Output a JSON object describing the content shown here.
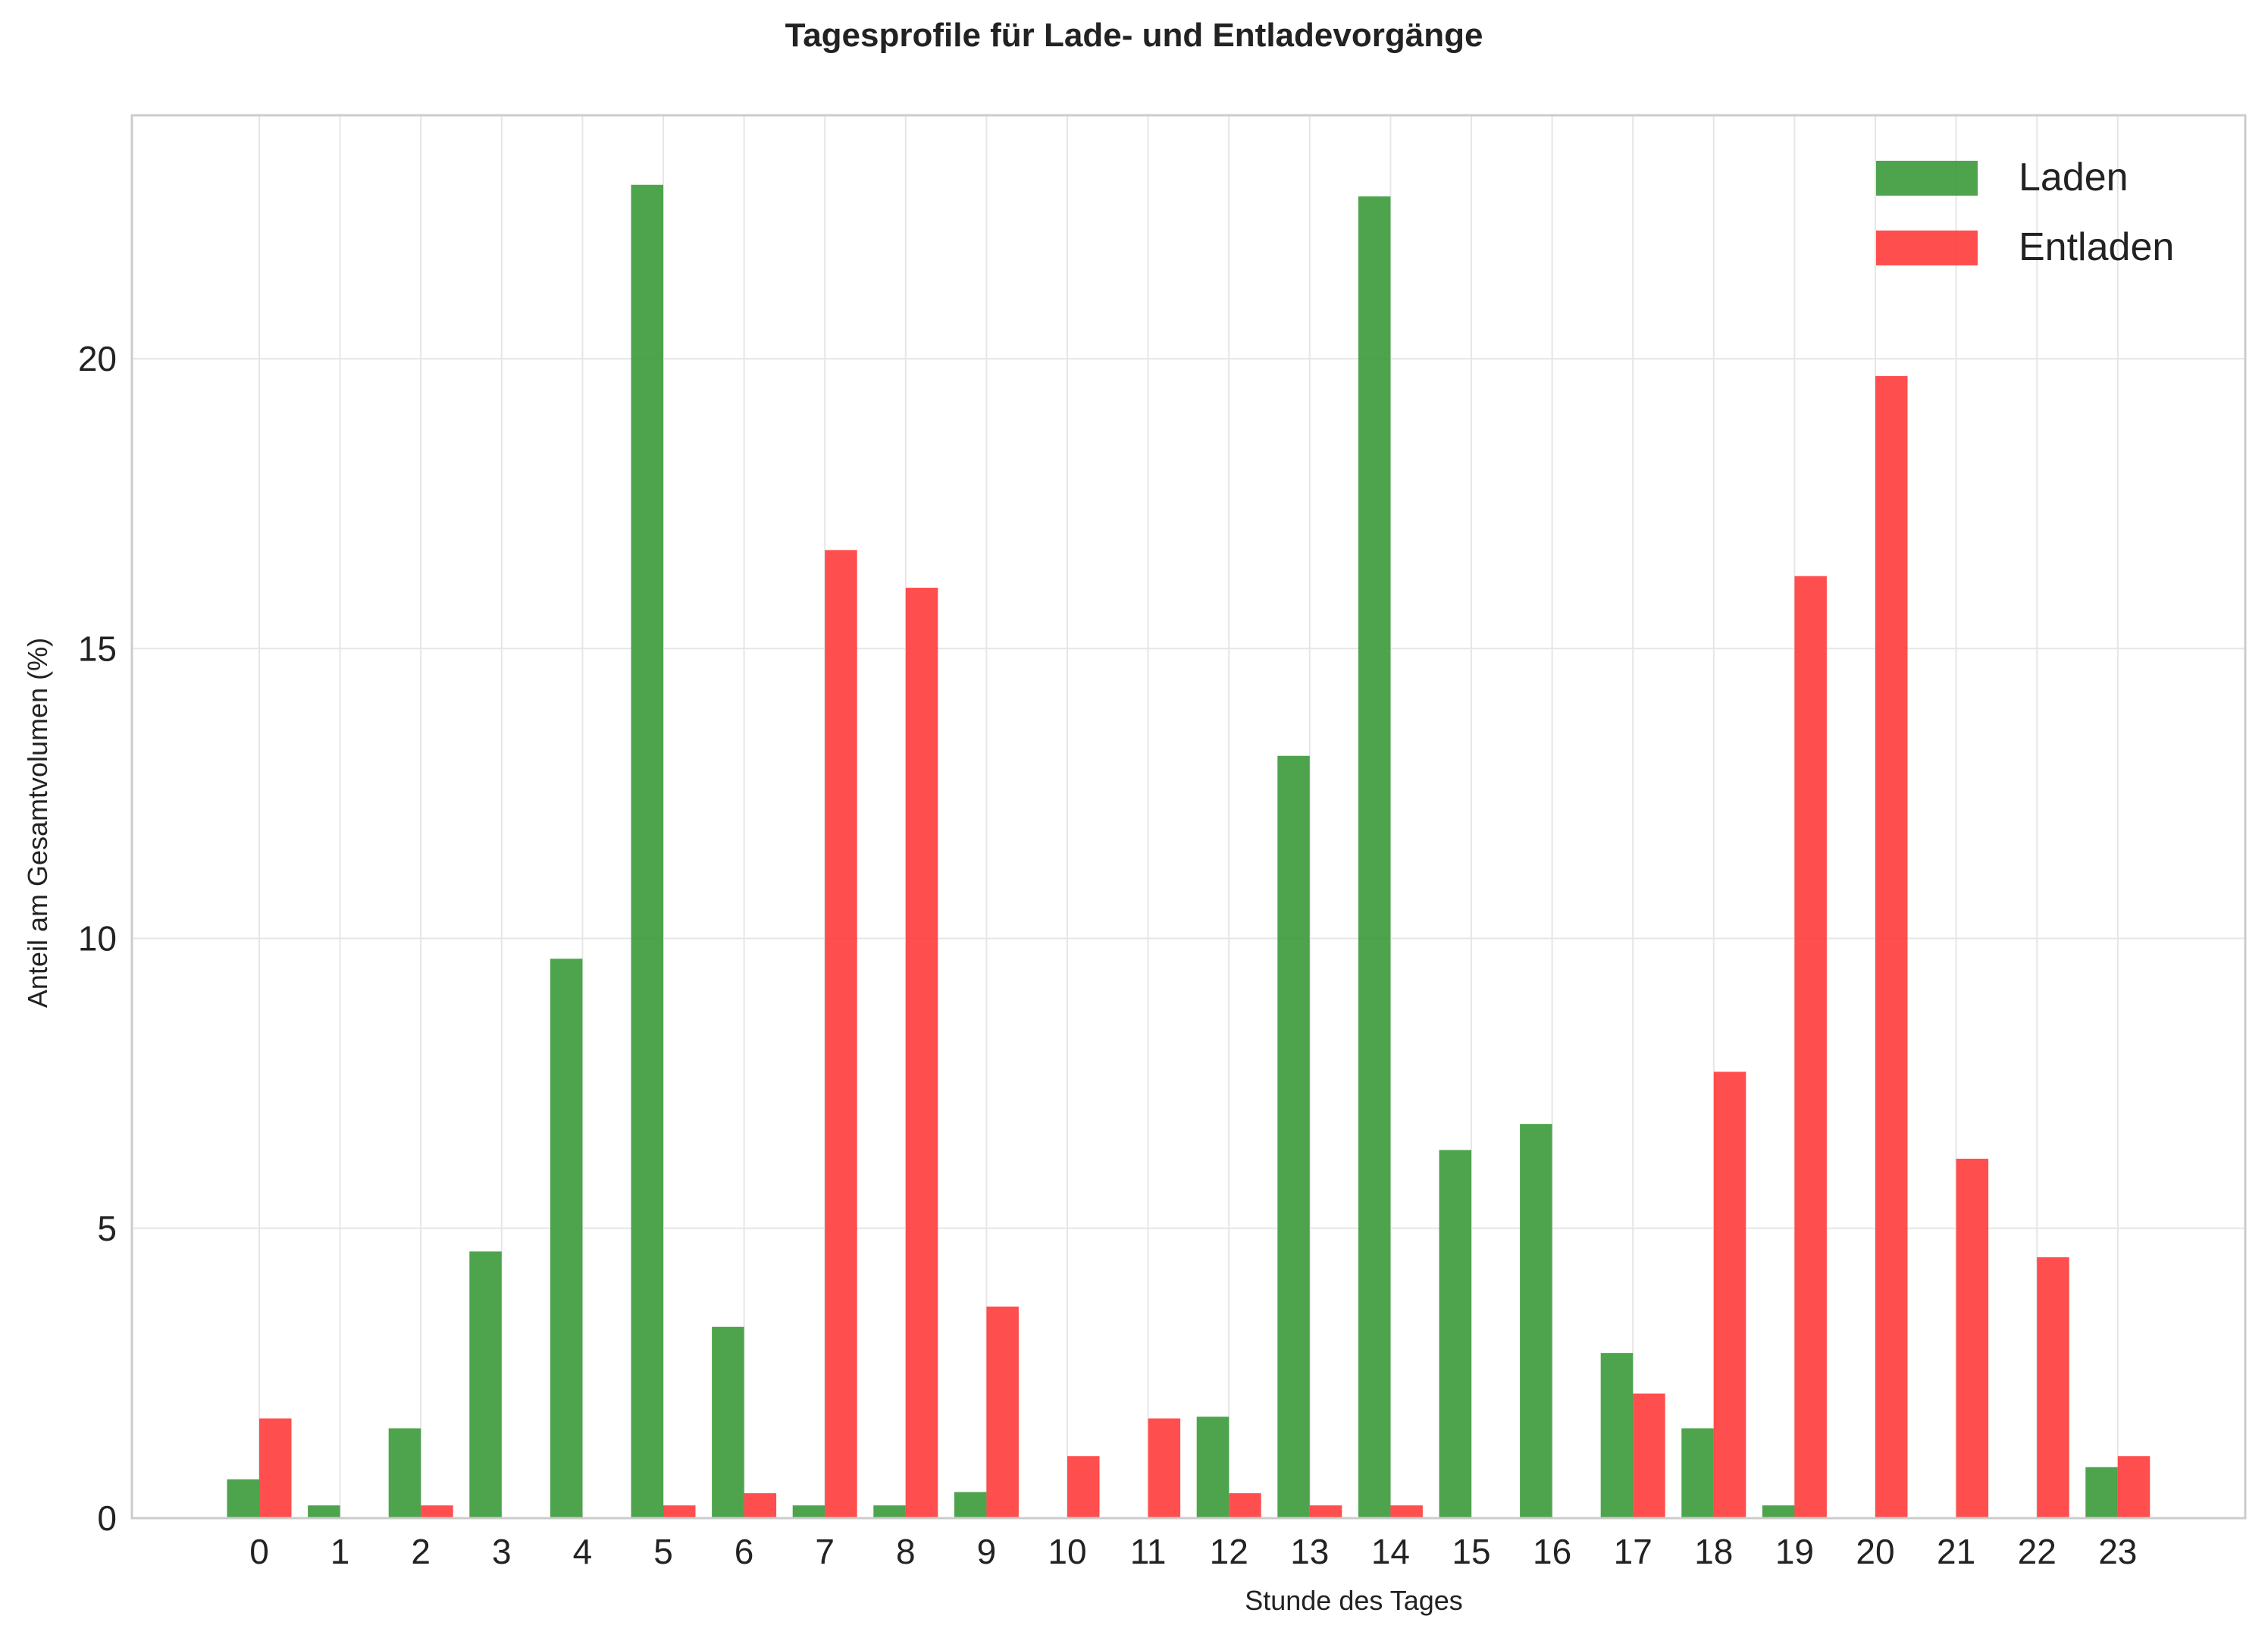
{
  "chart_data": {
    "type": "bar",
    "title": "Tagesprofile für Lade- und Entladevorgänge",
    "xlabel": "Stunde des Tages",
    "ylabel": "Anteil am Gesamtvolumen (%)",
    "categories": [
      "0",
      "1",
      "2",
      "3",
      "4",
      "5",
      "6",
      "7",
      "8",
      "9",
      "10",
      "11",
      "12",
      "13",
      "14",
      "15",
      "16",
      "17",
      "18",
      "19",
      "20",
      "21",
      "22",
      "23"
    ],
    "ylim": [
      0,
      24.2
    ],
    "yticks": [
      0,
      5,
      10,
      15,
      20
    ],
    "grid": true,
    "legend_position": "top-right",
    "series": [
      {
        "name": "Laden",
        "color": "#3a9a3a",
        "values": [
          0.67,
          0.22,
          1.55,
          4.6,
          9.65,
          23.0,
          3.3,
          0.22,
          0.22,
          0.45,
          0,
          0,
          1.75,
          13.15,
          22.8,
          6.35,
          6.8,
          2.85,
          1.55,
          0.22,
          0,
          0,
          0,
          0.88
        ]
      },
      {
        "name": "Entladen",
        "color": "#ff3b3b",
        "values": [
          1.72,
          0,
          0.22,
          0,
          0,
          0.22,
          0.43,
          16.7,
          16.05,
          3.65,
          1.07,
          1.72,
          0.43,
          0.22,
          0.22,
          0,
          0,
          2.15,
          7.7,
          16.25,
          19.7,
          6.2,
          4.5,
          1.07
        ]
      }
    ]
  }
}
